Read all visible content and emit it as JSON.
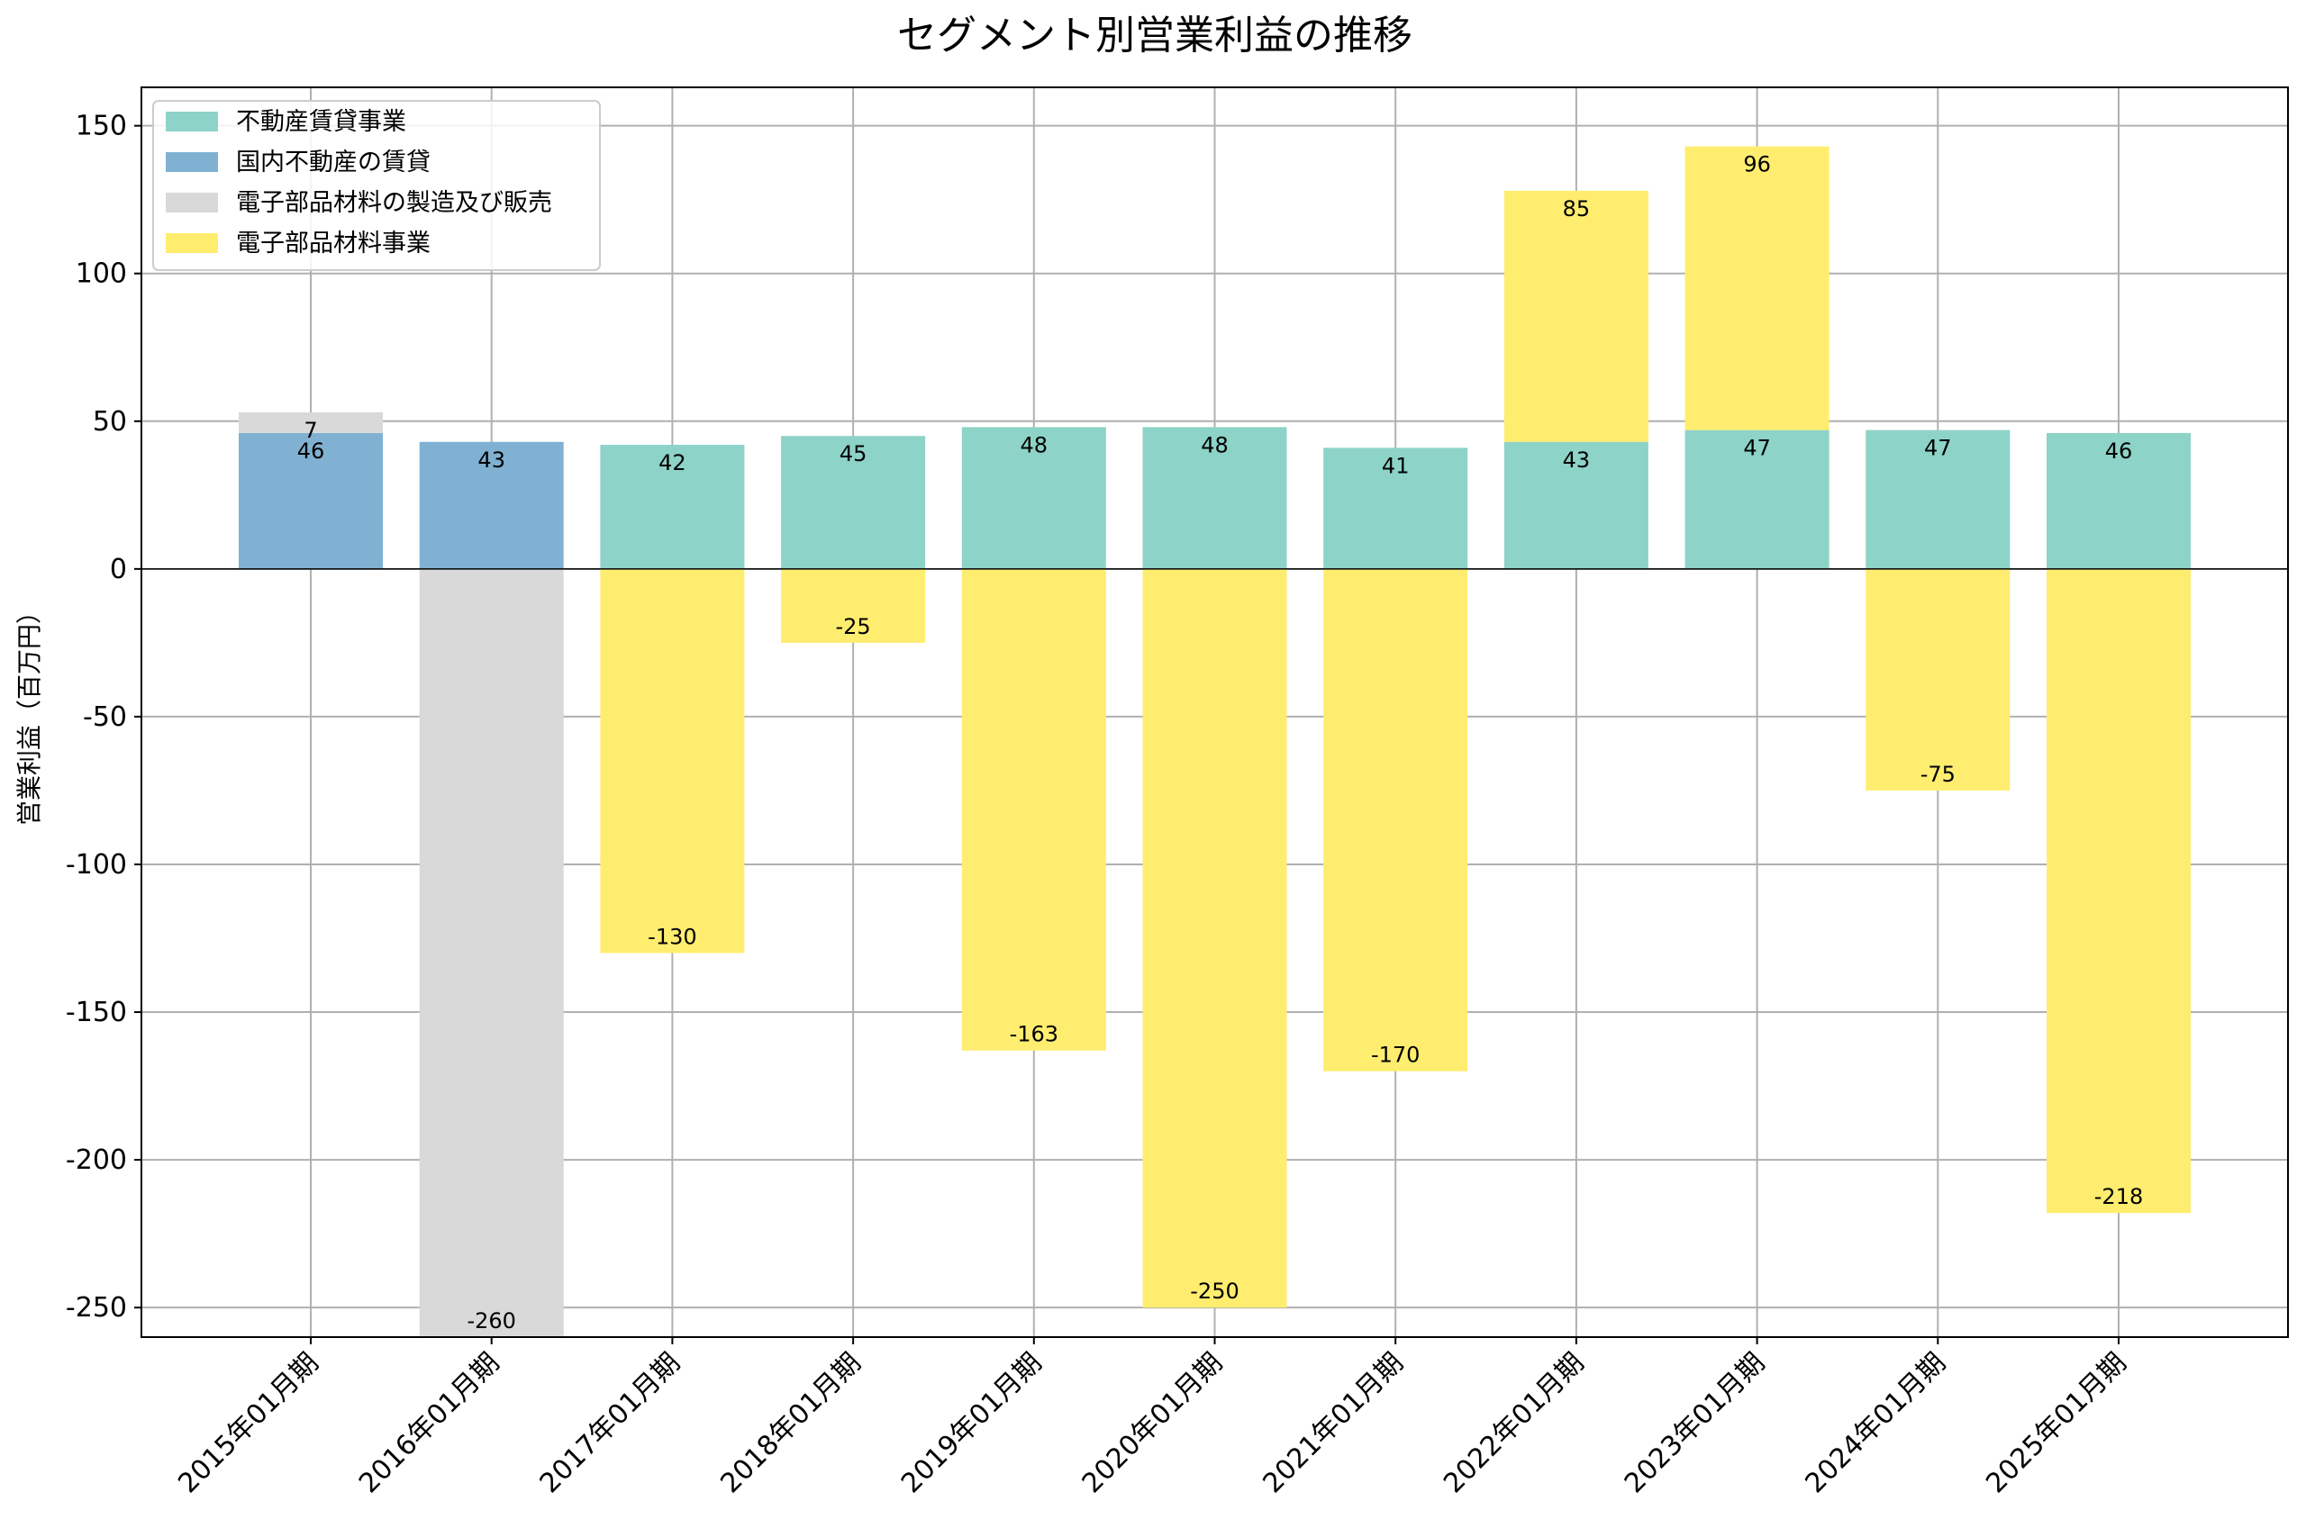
{
  "chart_data": {
    "type": "bar",
    "stacking": "positive-negative",
    "title": "セグメント別営業利益の推移",
    "xlabel": "",
    "ylabel": "営業利益（百万円）",
    "ylim": [
      -260,
      163
    ],
    "yticks": [
      150,
      100,
      50,
      0,
      -50,
      -100,
      -150,
      -200,
      -250
    ],
    "grid": true,
    "legend_position": "top-left",
    "categories": [
      "2015年01月期",
      "2016年01月期",
      "2017年01月期",
      "2018年01月期",
      "2019年01月期",
      "2020年01月期",
      "2021年01月期",
      "2022年01月期",
      "2023年01月期",
      "2024年01月期",
      "2025年01月期"
    ],
    "series": [
      {
        "name": "不動産賃貸事業",
        "color": "#8dd3c7",
        "values": [
          null,
          null,
          42,
          45,
          48,
          48,
          41,
          43,
          47,
          47,
          46
        ]
      },
      {
        "name": "国内不動産の賃貸",
        "color": "#80b1d3",
        "values": [
          46,
          43,
          null,
          null,
          null,
          null,
          null,
          null,
          null,
          null,
          null
        ]
      },
      {
        "name": "電子部品材料の製造及び販売",
        "color": "#d9d9d9",
        "values": [
          7,
          -260,
          null,
          null,
          null,
          null,
          null,
          null,
          null,
          null,
          null
        ]
      },
      {
        "name": "電子部品材料事業",
        "color": "#ffed6f",
        "values": [
          null,
          null,
          -130,
          -25,
          -163,
          -250,
          -170,
          85,
          96,
          -75,
          -218
        ]
      }
    ]
  }
}
